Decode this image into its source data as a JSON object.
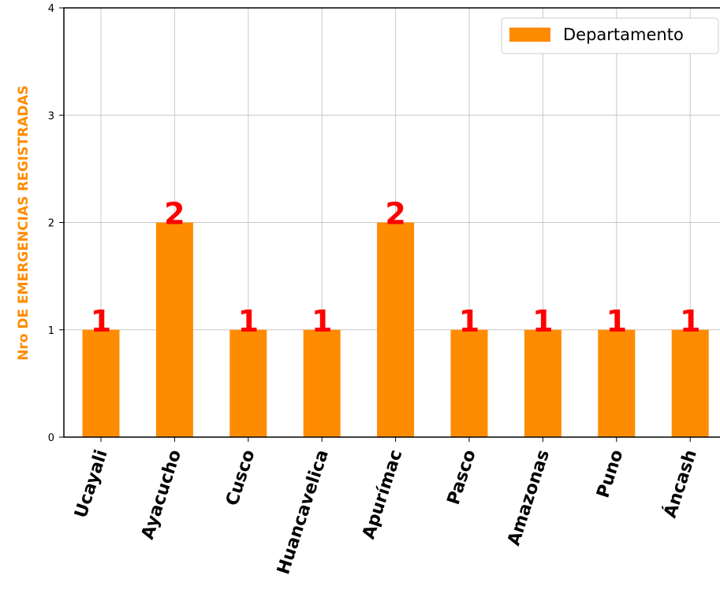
{
  "chart_data": {
    "type": "bar",
    "categories": [
      "Ucayali",
      "Ayacucho",
      "Cusco",
      "Huancavelica",
      "Apurímac",
      "Pasco",
      "Amazonas",
      "Puno",
      "Áncash"
    ],
    "series": [
      {
        "name": "Departamento",
        "values": [
          1,
          2,
          1,
          1,
          2,
          1,
          1,
          1,
          1
        ]
      }
    ],
    "data_labels": [
      "1",
      "2",
      "1",
      "1",
      "2",
      "1",
      "1",
      "1",
      "1"
    ],
    "xlabel": "",
    "ylabel": "Nro DE EMERGENCIAS REGISTRADAS",
    "ylim": [
      0,
      4
    ],
    "yticks": [
      "0",
      "1",
      "2",
      "3",
      "4"
    ],
    "grid": true,
    "legend_position": "top-right",
    "colors": {
      "bar": "#ff8c00",
      "data_label": "#ff0000",
      "ylabel": "#ff8c00",
      "grid": "#c8c8c8"
    }
  }
}
